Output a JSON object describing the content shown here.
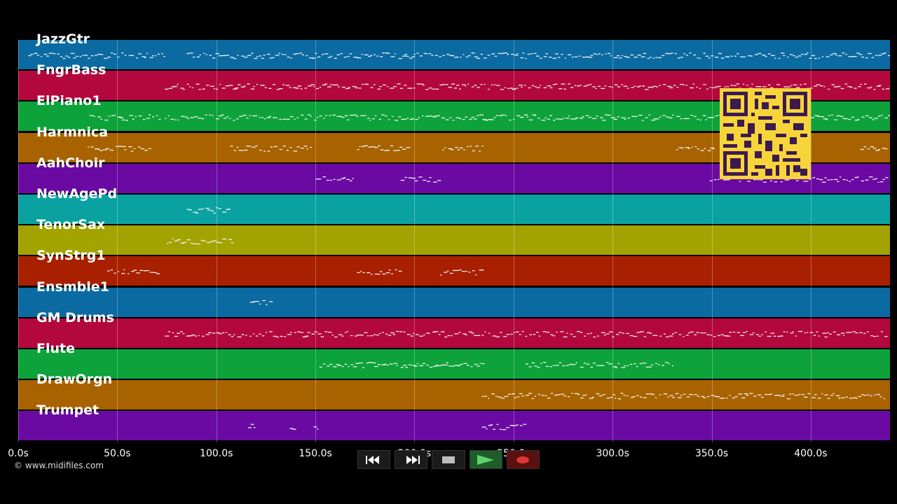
{
  "app": {
    "copyright": "© www.midifiles.com"
  },
  "tracks": [
    {
      "name": "JazzGtr",
      "color": "#0b6aa1"
    },
    {
      "name": "FngrBass",
      "color": "#b3083e"
    },
    {
      "name": "ElPiano1",
      "color": "#0ea23a"
    },
    {
      "name": "Harmnica",
      "color": "#a86300"
    },
    {
      "name": "AahChoir",
      "color": "#6a0aa2"
    },
    {
      "name": "NewAgePd",
      "color": "#0aa1a1"
    },
    {
      "name": "TenorSax",
      "color": "#a3a300"
    },
    {
      "name": "SynStrg1",
      "color": "#a82000"
    },
    {
      "name": "Ensmble1",
      "color": "#0b6aa1"
    },
    {
      "name": "GM Drums",
      "color": "#b3083e"
    },
    {
      "name": "Flute",
      "color": "#0ea23a"
    },
    {
      "name": "DrawOrgn",
      "color": "#a86300"
    },
    {
      "name": "Trumpet",
      "color": "#6a0aa2"
    }
  ],
  "timeline": {
    "max_seconds": 440,
    "ticks": [
      0,
      50,
      100,
      150,
      200,
      250,
      300,
      350,
      400
    ],
    "tick_labels": [
      "0.0s",
      "50.0s",
      "100.0s",
      "150.0s",
      "200.0s",
      "250.0s",
      "300.0s",
      "350.0s",
      "400.0s"
    ]
  },
  "note_segments": [
    {
      "track": 0,
      "start": 5,
      "end": 74
    },
    {
      "track": 0,
      "start": 85,
      "end": 440
    },
    {
      "track": 1,
      "start": 74,
      "end": 440
    },
    {
      "track": 2,
      "start": 36,
      "end": 72
    },
    {
      "track": 2,
      "start": 74,
      "end": 440
    },
    {
      "track": 3,
      "start": 35,
      "end": 67
    },
    {
      "track": 3,
      "start": 107,
      "end": 148
    },
    {
      "track": 3,
      "start": 171,
      "end": 196
    },
    {
      "track": 3,
      "start": 214,
      "end": 235
    },
    {
      "track": 3,
      "start": 332,
      "end": 352
    },
    {
      "track": 3,
      "start": 425,
      "end": 438
    },
    {
      "track": 4,
      "start": 150,
      "end": 170
    },
    {
      "track": 4,
      "start": 193,
      "end": 213
    },
    {
      "track": 4,
      "start": 349,
      "end": 438
    },
    {
      "track": 5,
      "start": 85,
      "end": 106
    },
    {
      "track": 6,
      "start": 75,
      "end": 108
    },
    {
      "track": 7,
      "start": 45,
      "end": 71
    },
    {
      "track": 7,
      "start": 171,
      "end": 192
    },
    {
      "track": 7,
      "start": 213,
      "end": 234
    },
    {
      "track": 8,
      "start": 117,
      "end": 127
    },
    {
      "track": 9,
      "start": 74,
      "end": 438
    },
    {
      "track": 10,
      "start": 152,
      "end": 234
    },
    {
      "track": 10,
      "start": 256,
      "end": 331
    },
    {
      "track": 11,
      "start": 234,
      "end": 438
    },
    {
      "track": 12,
      "start": 116,
      "end": 119
    },
    {
      "track": 12,
      "start": 137,
      "end": 139
    },
    {
      "track": 12,
      "start": 149,
      "end": 151
    },
    {
      "track": 12,
      "start": 234,
      "end": 256
    }
  ],
  "transport": [
    {
      "name": "rewind-button",
      "icon": "rewind-icon"
    },
    {
      "name": "fast-forward-button",
      "icon": "fast-forward-icon"
    },
    {
      "name": "stop-button",
      "icon": "stop-icon"
    },
    {
      "name": "play-button",
      "icon": "play-icon"
    },
    {
      "name": "record-button",
      "icon": "record-icon"
    }
  ],
  "qr_code": {
    "icon": "qr-code-icon"
  }
}
